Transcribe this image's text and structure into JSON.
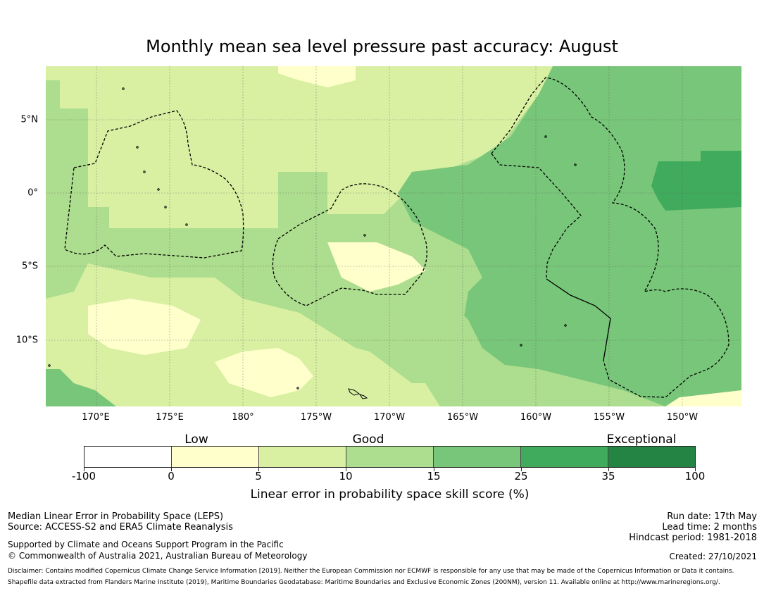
{
  "title": "Monthly mean sea level pressure past accuracy: August",
  "map": {
    "longitude_labels": [
      "170°E",
      "175°E",
      "180°",
      "175°W",
      "170°W",
      "165°W",
      "160°W",
      "155°W",
      "150°W"
    ],
    "latitude_labels": [
      "5°N",
      "0°",
      "5°S",
      "10°S"
    ],
    "colors": {
      "lowest": "#ffffff",
      "low": "#ffffcc",
      "good_low": "#d9f0a3",
      "good_high": "#addd8e",
      "exceptional_low": "#78c679",
      "exceptional_mid": "#41ab5d",
      "exceptional_high": "#238443",
      "boundary": "#000000"
    }
  },
  "legend": {
    "categories": [
      "Low",
      "Good",
      "Exceptional"
    ],
    "tick_labels": [
      "-100",
      "0",
      "5",
      "10",
      "15",
      "25",
      "35",
      "100"
    ],
    "segment_colors": [
      "#ffffff",
      "#ffffcc",
      "#d9f0a3",
      "#addd8e",
      "#78c679",
      "#41ab5d",
      "#238443"
    ],
    "label": "Linear error in probability space skill score (%)"
  },
  "footer": {
    "method": "Median Linear Error in Probability Space (LEPS)",
    "source": "Source: ACCESS-S2 and ERA5 Climate Reanalysis",
    "support": "Supported by Climate and Oceans Support Program in the Pacific",
    "copyright": "© Commonwealth of Australia 2021, Australian Bureau of Meteorology",
    "run_date": "Run date: 17th May",
    "lead_time": "Lead time: 2 months",
    "hindcast": "Hindcast period: 1981-2018",
    "created": "Created: 27/10/2021",
    "disclaimer": "Disclaimer: Contains modified Copernicus Climate Change Service Information [2019]. Neither the European Commission nor ECMWF is responsible for any use that may be made of the Copernicus Information or Data it contains.",
    "shapefile": "Shapefile data extracted from Flanders Marine Institute (2019), Maritime Boundaries Geodatabase: Maritime Boundaries and Exclusive Economic Zones (200NM), version 11. Available online at http://www.marineregions.org/."
  }
}
